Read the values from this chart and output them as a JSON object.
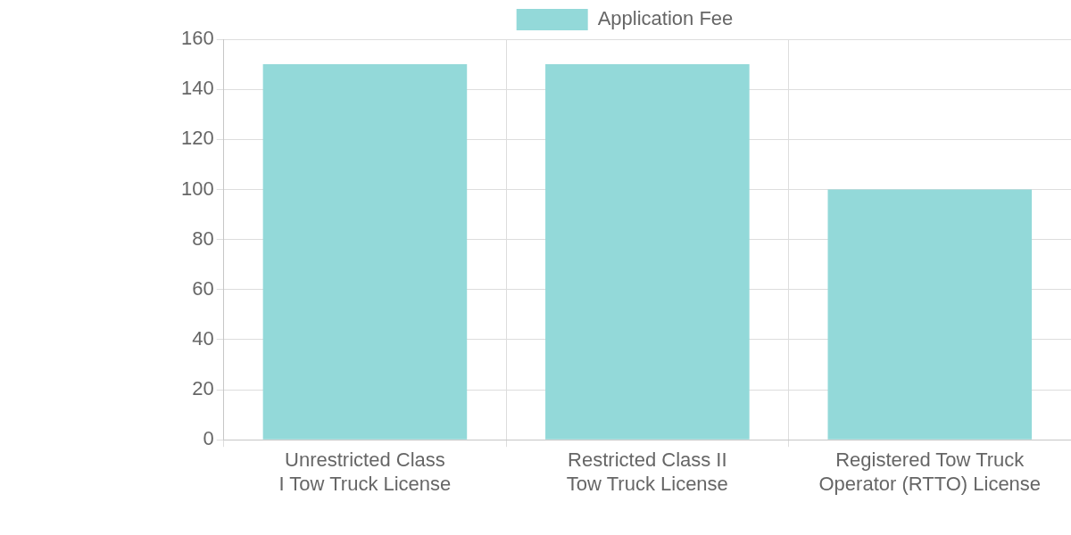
{
  "chart_data": {
    "type": "bar",
    "categories": [
      "Unrestricted Class I Tow Truck License",
      "Restricted Class II Tow Truck License",
      "Registered Tow Truck Operator (RTTO) License"
    ],
    "series": [
      {
        "name": "Application Fee",
        "color": "#93d9d9",
        "values": [
          150,
          150,
          100
        ]
      }
    ],
    "ylim": [
      0,
      160
    ],
    "yticks": [
      0,
      20,
      40,
      60,
      80,
      100,
      120,
      140,
      160
    ],
    "grid": true,
    "legend": "top"
  }
}
